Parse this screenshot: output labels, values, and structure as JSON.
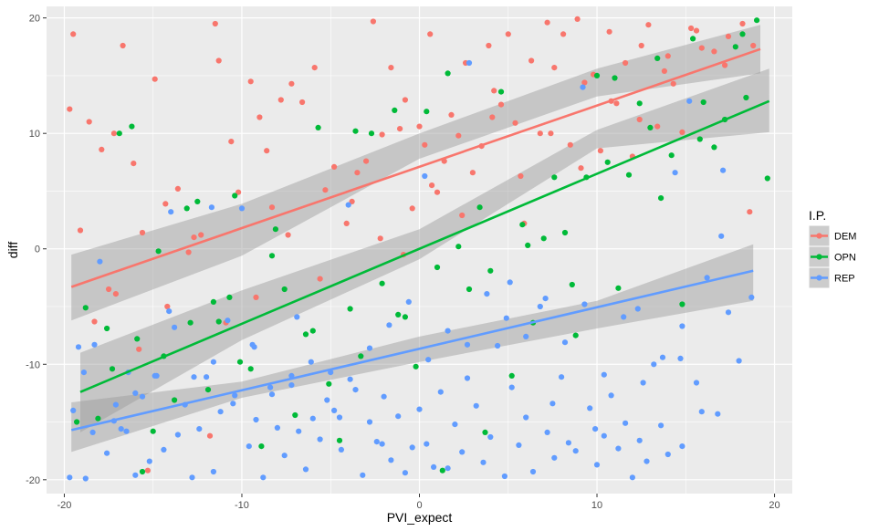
{
  "chart_data": {
    "type": "scatter",
    "title": "",
    "xlabel": "PVI_expect",
    "ylabel": "diff",
    "xlim": [
      -21,
      21
    ],
    "ylim": [
      -21.2,
      21
    ],
    "x_ticks": [
      -20,
      -10,
      0,
      10,
      20
    ],
    "x_tick_labels": [
      "-20",
      "-10",
      "0",
      "10",
      "20"
    ],
    "y_ticks": [
      -20,
      -10,
      0,
      10,
      20
    ],
    "y_tick_labels": [
      "-20",
      "-10",
      "0",
      "10",
      "20"
    ],
    "grid": true,
    "panel_background": "#ebebeb",
    "grid_color": "#ffffff",
    "ribbon_color": "#999999",
    "legend": {
      "title": "I.P.",
      "position": "right",
      "entries": [
        "DEM",
        "OPN",
        "REP"
      ]
    },
    "series": [
      {
        "name": "DEM",
        "color": "#f8766d",
        "fit_line": {
          "x": [
            -19.6,
            19.2
          ],
          "y": [
            -3.3,
            17.3
          ]
        },
        "ribbon": {
          "x": [
            -19.6,
            -10,
            0,
            10,
            19.2
          ],
          "lower": [
            -6.2,
            -0.6,
            7.8,
            13.2,
            15.2
          ],
          "upper": [
            -0.5,
            3.9,
            10.0,
            15.6,
            19.4
          ]
        },
        "x": [
          -19.7,
          -19.5,
          -19.1,
          -18.6,
          -17.9,
          -17.5,
          -17.2,
          -16.7,
          -16.1,
          -15.6,
          -15.3,
          -14.9,
          -14.3,
          -13.6,
          -13.0,
          -12.3,
          -11.8,
          -11.5,
          -11.3,
          -10.6,
          -10.2,
          -9.5,
          -9.0,
          -8.6,
          -8.3,
          -7.8,
          -7.2,
          -6.6,
          -5.9,
          -5.3,
          -4.8,
          -4.1,
          -3.5,
          -3.0,
          -2.6,
          -2.1,
          -1.6,
          -1.1,
          -0.8,
          -0.4,
          0.0,
          0.3,
          0.6,
          1.0,
          1.4,
          1.8,
          2.2,
          2.6,
          3.0,
          3.5,
          3.9,
          4.2,
          4.6,
          5.0,
          5.4,
          5.9,
          6.3,
          6.8,
          7.2,
          7.6,
          8.1,
          8.5,
          8.9,
          9.3,
          9.8,
          10.2,
          10.7,
          11.1,
          11.6,
          12.0,
          12.5,
          12.9,
          13.4,
          13.8,
          14.3,
          14.8,
          15.3,
          15.9,
          16.6,
          17.4,
          18.2,
          18.8,
          -18.3,
          -17.1,
          -15.8,
          -14.2,
          -12.7,
          -10.9,
          -9.2,
          -7.4,
          -5.6,
          -3.8,
          -2.2,
          -0.9,
          0.7,
          2.4,
          4.1,
          5.7,
          7.4,
          9.1,
          10.8,
          12.4,
          14.0,
          15.6,
          17.2,
          18.6
        ],
        "y": [
          12.1,
          18.6,
          1.6,
          11.0,
          8.6,
          -3.5,
          10.0,
          17.6,
          7.4,
          1.4,
          -19.2,
          14.7,
          3.9,
          5.2,
          -0.3,
          1.2,
          -16.2,
          19.5,
          16.3,
          9.3,
          4.9,
          14.5,
          11.4,
          8.5,
          3.6,
          12.9,
          14.3,
          12.7,
          15.7,
          5.1,
          7.1,
          2.2,
          6.6,
          7.6,
          19.7,
          9.9,
          15.7,
          10.4,
          12.9,
          3.5,
          10.6,
          9.0,
          18.6,
          4.9,
          7.6,
          11.6,
          9.8,
          16.1,
          6.6,
          8.9,
          17.6,
          13.7,
          12.5,
          18.6,
          10.9,
          2.2,
          16.3,
          10.0,
          19.6,
          15.7,
          18.6,
          9.0,
          19.9,
          14.4,
          15.1,
          8.5,
          18.8,
          12.6,
          16.1,
          8.0,
          17.6,
          19.4,
          10.6,
          15.4,
          14.3,
          10.1,
          19.1,
          17.4,
          17.1,
          18.4,
          19.5,
          17.6,
          -6.3,
          -3.9,
          -8.7,
          -5.0,
          1.0,
          -6.4,
          -4.2,
          1.2,
          -2.6,
          4.1,
          0.9,
          -0.5,
          5.5,
          2.9,
          11.4,
          6.3,
          10.0,
          7.0,
          12.8,
          11.2,
          16.7,
          18.9,
          15.9,
          3.2
        ]
      },
      {
        "name": "OPN",
        "color": "#00ba38",
        "fit_line": {
          "x": [
            -19.1,
            19.7
          ],
          "y": [
            -12.4,
            12.8
          ]
        },
        "ribbon": {
          "x": [
            -19.1,
            -10,
            0,
            10,
            19.7
          ],
          "lower": [
            -15.9,
            -7.9,
            -0.9,
            8.7,
            10.1
          ],
          "upper": [
            -9.0,
            -3.6,
            1.7,
            10.3,
            15.6
          ]
        },
        "x": [
          -19.3,
          -18.8,
          -18.1,
          -17.6,
          -16.9,
          -16.2,
          -15.6,
          -15.0,
          -14.4,
          -13.8,
          -13.1,
          -12.5,
          -11.9,
          -11.3,
          -10.7,
          -10.1,
          -9.5,
          -8.9,
          -8.3,
          -7.6,
          -7.0,
          -6.4,
          -5.7,
          -5.1,
          -4.5,
          -3.9,
          -3.3,
          -2.7,
          -2.1,
          -1.4,
          -0.8,
          -0.2,
          0.4,
          1.0,
          1.6,
          2.2,
          2.8,
          3.4,
          4.0,
          4.6,
          5.2,
          5.8,
          6.4,
          7.0,
          7.6,
          8.2,
          8.8,
          9.4,
          10.0,
          10.6,
          11.2,
          11.8,
          12.4,
          13.0,
          13.6,
          14.2,
          14.8,
          15.4,
          16.0,
          16.6,
          17.2,
          17.8,
          18.4,
          19.0,
          19.6,
          -17.3,
          -15.9,
          -14.7,
          -12.9,
          -11.6,
          -10.4,
          -8.1,
          -6.0,
          -3.6,
          -1.2,
          1.3,
          3.7,
          6.1,
          8.6,
          11.0,
          13.4,
          15.8,
          18.2
        ],
        "y": [
          -15.0,
          -5.1,
          -14.7,
          -6.9,
          10.0,
          10.6,
          -19.3,
          -15.8,
          -9.3,
          -13.1,
          3.5,
          4.1,
          -12.2,
          -6.3,
          -4.2,
          -9.8,
          -10.4,
          -17.1,
          -0.6,
          -3.5,
          -14.4,
          -7.4,
          10.5,
          -11.7,
          -16.6,
          -5.2,
          -9.3,
          10.0,
          -3.0,
          12.0,
          -5.9,
          -10.2,
          11.9,
          -1.6,
          15.2,
          0.2,
          -3.5,
          3.6,
          -1.9,
          13.6,
          -11.0,
          2.1,
          -6.4,
          0.9,
          6.2,
          1.4,
          -7.5,
          6.2,
          15.0,
          7.5,
          -3.4,
          6.4,
          12.6,
          10.5,
          4.4,
          8.1,
          -4.8,
          18.2,
          12.7,
          8.8,
          11.2,
          17.5,
          13.1,
          19.8,
          6.1,
          -10.4,
          -7.8,
          -0.2,
          -6.4,
          -4.6,
          4.6,
          1.7,
          -7.1,
          10.2,
          -5.7,
          -19.2,
          -15.9,
          0.3,
          -3.1,
          14.8,
          16.5,
          9.5,
          18.6
        ]
      },
      {
        "name": "REP",
        "color": "#619cff",
        "fit_line": {
          "x": [
            -19.6,
            18.8
          ],
          "y": [
            -15.7,
            -1.9
          ]
        },
        "ribbon": {
          "x": [
            -19.6,
            -10,
            0,
            10,
            18.8
          ],
          "lower": [
            -17.6,
            -12.9,
            -9.8,
            -6.9,
            -4.5
          ],
          "upper": [
            -13.3,
            -11.5,
            -7.6,
            -4.5,
            0.4
          ]
        },
        "x": [
          -19.7,
          -19.2,
          -18.8,
          -18.4,
          -18.0,
          -17.6,
          -17.2,
          -16.8,
          -16.4,
          -16.0,
          -15.6,
          -15.2,
          -14.8,
          -14.4,
          -14.0,
          -13.6,
          -13.2,
          -12.8,
          -12.4,
          -12.0,
          -11.6,
          -11.2,
          -10.8,
          -10.4,
          -10.0,
          -9.6,
          -9.2,
          -8.8,
          -8.4,
          -8.0,
          -7.6,
          -7.2,
          -6.8,
          -6.4,
          -6.0,
          -5.6,
          -5.2,
          -4.8,
          -4.4,
          -4.0,
          -3.6,
          -3.2,
          -2.8,
          -2.4,
          -2.0,
          -1.6,
          -1.2,
          -0.8,
          -0.4,
          0.0,
          0.4,
          0.8,
          1.2,
          1.6,
          2.0,
          2.4,
          2.8,
          3.2,
          3.6,
          4.0,
          4.4,
          4.8,
          5.2,
          5.6,
          6.0,
          6.4,
          6.8,
          7.2,
          7.6,
          8.0,
          8.4,
          8.8,
          9.2,
          9.6,
          10.0,
          10.4,
          10.8,
          11.2,
          11.6,
          12.0,
          12.4,
          12.8,
          13.2,
          13.6,
          14.0,
          14.4,
          14.8,
          15.2,
          15.6,
          16.2,
          16.8,
          17.4,
          18.0,
          18.7,
          -19.5,
          -18.3,
          -17.1,
          -16.0,
          -14.9,
          -13.8,
          -12.7,
          -11.6,
          -10.5,
          -9.4,
          -8.3,
          -7.2,
          -6.1,
          -5.0,
          -3.9,
          -2.8,
          -1.7,
          -0.6,
          0.5,
          1.6,
          2.7,
          3.8,
          4.9,
          6.0,
          7.1,
          8.2,
          9.3,
          10.4,
          11.5,
          12.6,
          13.7,
          14.8,
          15.9,
          17.0,
          -18.9,
          -16.5,
          -14.1,
          -11.7,
          -9.3,
          -6.9,
          -4.5,
          -2.1,
          0.3,
          2.7,
          5.1,
          7.5,
          9.9,
          12.3,
          14.7,
          17.1
        ],
        "y": [
          -19.8,
          -8.5,
          -19.9,
          -15.9,
          -1.1,
          -17.7,
          -14.9,
          -15.6,
          -10.7,
          -19.6,
          -12.8,
          -18.4,
          -11.0,
          -17.4,
          3.2,
          -16.1,
          -13.5,
          -19.8,
          -15.6,
          -11.1,
          -19.3,
          -14.1,
          -6.2,
          -12.7,
          3.5,
          -17.1,
          -14.8,
          -19.8,
          -12.0,
          -15.5,
          -17.9,
          -11.0,
          -15.8,
          -19.1,
          -14.7,
          -16.5,
          -13.1,
          -14.0,
          -17.4,
          3.8,
          -12.2,
          -19.6,
          -15.0,
          -16.7,
          -12.8,
          -18.3,
          -14.5,
          -19.4,
          -17.2,
          -13.9,
          -16.9,
          -18.9,
          -12.4,
          -19.0,
          -15.2,
          -17.6,
          16.1,
          -13.6,
          -18.5,
          -16.3,
          -8.4,
          -19.7,
          -12.0,
          -17.0,
          -14.6,
          -19.3,
          -5.0,
          -15.9,
          -18.1,
          -11.1,
          -16.8,
          -17.5,
          14.0,
          -13.8,
          -18.7,
          -16.2,
          -12.7,
          -17.3,
          -15.1,
          -19.8,
          -16.6,
          -18.4,
          -10.0,
          -15.3,
          -17.8,
          6.6,
          -17.1,
          12.8,
          -11.6,
          -2.5,
          -14.3,
          -5.5,
          -9.7,
          -4.2,
          -14.0,
          -8.3,
          -13.5,
          -12.5,
          -11.0,
          -6.8,
          -11.1,
          -9.8,
          -13.4,
          -8.3,
          -12.6,
          -11.8,
          -9.8,
          -10.7,
          -11.3,
          -8.6,
          -6.6,
          -4.6,
          -9.6,
          -7.1,
          -8.3,
          -3.9,
          -6.0,
          -7.6,
          -4.3,
          -8.1,
          -4.8,
          -10.9,
          -5.9,
          -11.6,
          -9.4,
          -6.7,
          -14.1,
          1.1,
          -10.7,
          -15.8,
          -5.4,
          3.6,
          -8.5,
          -5.9,
          -14.6,
          -16.9,
          6.3,
          -11.2,
          -2.9,
          -13.4,
          -15.6,
          -5.2,
          -9.5,
          6.8
        ]
      }
    ]
  }
}
